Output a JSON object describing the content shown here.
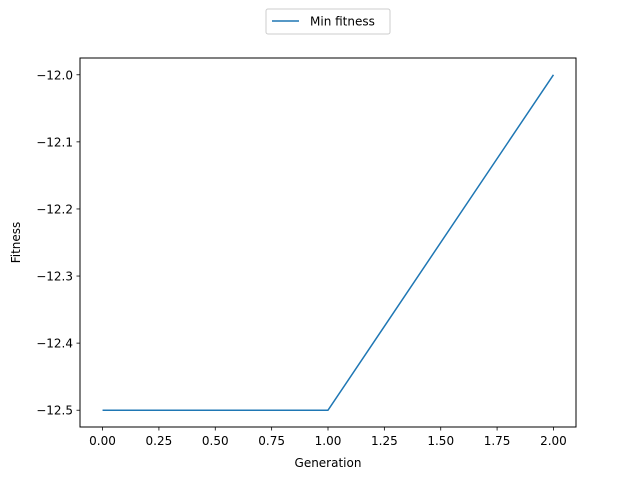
{
  "chart_data": {
    "type": "line",
    "title": "",
    "xlabel": "Generation",
    "ylabel": "Fitness",
    "xlim": [
      -0.1,
      2.1
    ],
    "ylim": [
      -12.525,
      -11.975
    ],
    "x_ticks": [
      0.0,
      0.25,
      0.5,
      0.75,
      1.0,
      1.25,
      1.5,
      1.75,
      2.0
    ],
    "x_tick_labels": [
      "0.00",
      "0.25",
      "0.50",
      "0.75",
      "1.00",
      "1.25",
      "1.50",
      "1.75",
      "2.00"
    ],
    "y_ticks": [
      -12.0,
      -12.1,
      -12.2,
      -12.3,
      -12.4,
      -12.5
    ],
    "y_tick_labels": [
      "−12.0",
      "−12.1",
      "−12.2",
      "−12.3",
      "−12.4",
      "−12.5"
    ],
    "grid": false,
    "legend_position": "top-center, outside plot",
    "series": [
      {
        "name": "Min fitness",
        "color": "#1f77b4",
        "x": [
          0,
          1,
          2
        ],
        "y": [
          -12.5,
          -12.5,
          -12.0
        ]
      }
    ]
  }
}
